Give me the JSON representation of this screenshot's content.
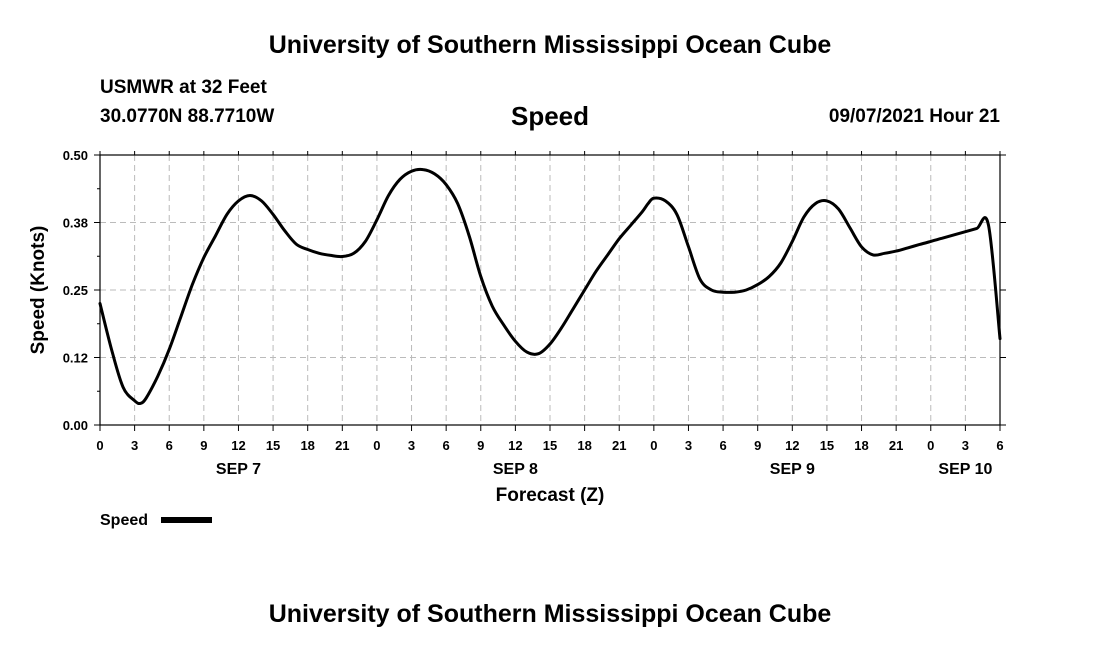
{
  "header": {
    "top_title": "University of Southern Mississippi Ocean Cube",
    "station": "USMWR at 32 Feet",
    "coords": "30.0770N  88.7710W",
    "run_time": "09/07/2021 Hour 21",
    "bottom_title": "University of Southern Mississippi Ocean Cube"
  },
  "chart_data": {
    "type": "line",
    "title": "Speed",
    "xlabel": "Forecast (Z)",
    "ylabel": "Speed (Knots)",
    "ylim": [
      0,
      0.5
    ],
    "yticks": [
      "0.00",
      "0.12",
      "0.25",
      "0.38",
      "0.50"
    ],
    "xlim": [
      0,
      78
    ],
    "x_tick_labels": [
      "0",
      "3",
      "6",
      "9",
      "12",
      "15",
      "18",
      "21",
      "0",
      "3",
      "6",
      "9",
      "12",
      "15",
      "18",
      "21",
      "0",
      "3",
      "6",
      "9",
      "12",
      "15",
      "18",
      "21",
      "0",
      "3",
      "6"
    ],
    "date_labels": [
      {
        "label": "SEP 7",
        "hour": 12
      },
      {
        "label": "SEP 8",
        "hour": 36
      },
      {
        "label": "SEP 9",
        "hour": 60
      },
      {
        "label": "SEP 10",
        "hour": 75
      }
    ],
    "grid": true,
    "legend": "bottom-left",
    "color": "#000000",
    "series": [
      {
        "name": "Speed",
        "x": [
          0,
          1,
          2,
          3,
          3.5,
          4,
          5,
          6,
          7,
          8,
          9,
          10,
          11,
          12,
          13,
          14,
          15,
          16,
          17,
          18,
          19,
          20,
          21,
          22,
          23,
          24,
          25,
          26,
          27,
          28,
          29,
          30,
          31,
          32,
          33,
          34,
          35,
          36,
          37,
          38,
          39,
          40,
          41,
          42,
          43,
          44,
          45,
          46,
          47,
          47.5,
          48,
          49,
          50,
          51,
          52,
          53,
          54,
          55,
          56,
          57,
          58,
          59,
          60,
          61,
          62,
          63,
          64,
          65,
          66,
          67,
          68,
          69,
          70,
          71,
          72,
          73,
          74,
          75,
          76,
          77,
          78
        ],
        "values": [
          0.225,
          0.14,
          0.07,
          0.045,
          0.04,
          0.05,
          0.09,
          0.14,
          0.2,
          0.26,
          0.31,
          0.35,
          0.39,
          0.415,
          0.425,
          0.415,
          0.39,
          0.36,
          0.335,
          0.325,
          0.318,
          0.314,
          0.312,
          0.318,
          0.34,
          0.38,
          0.425,
          0.455,
          0.47,
          0.473,
          0.465,
          0.445,
          0.41,
          0.35,
          0.275,
          0.22,
          0.185,
          0.155,
          0.135,
          0.132,
          0.15,
          0.18,
          0.215,
          0.25,
          0.285,
          0.315,
          0.345,
          0.37,
          0.395,
          0.41,
          0.42,
          0.415,
          0.39,
          0.33,
          0.27,
          0.25,
          0.246,
          0.246,
          0.25,
          0.26,
          0.275,
          0.3,
          0.34,
          0.385,
          0.41,
          0.415,
          0.4,
          0.365,
          0.33,
          0.315,
          0.318,
          0.322,
          0.328,
          0.334,
          0.34,
          0.346,
          0.352,
          0.358,
          0.364,
          0.37,
          0.16
        ]
      }
    ],
    "legend_entry": "Speed"
  }
}
